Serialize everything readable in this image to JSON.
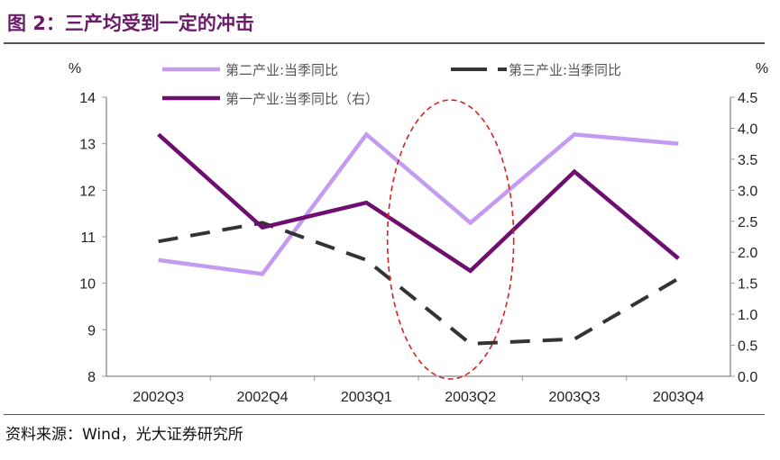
{
  "title": "图 2：三产均受到一定的冲击",
  "source": "资料来源：Wind，光大证券研究所",
  "chart_data": {
    "type": "line",
    "categories": [
      "2002Q3",
      "2002Q4",
      "2003Q1",
      "2003Q2",
      "2003Q3",
      "2003Q4"
    ],
    "left_axis": {
      "unit": "%",
      "ylim": [
        8,
        14
      ],
      "ticks": [
        "8",
        "9",
        "10",
        "11",
        "12",
        "13",
        "14"
      ]
    },
    "right_axis": {
      "unit": "%",
      "ylim": [
        0,
        4.5
      ],
      "ticks": [
        "0.0",
        "0.5",
        "1.0",
        "1.5",
        "2.0",
        "2.5",
        "3.0",
        "3.5",
        "4.0",
        "4.5"
      ]
    },
    "series": [
      {
        "name": "第二产业:当季同比",
        "axis": "left",
        "color": "#c39bf0",
        "style": "solid",
        "values": [
          10.5,
          10.2,
          13.2,
          11.3,
          13.2,
          13.0
        ]
      },
      {
        "name": "第三产业:当季同比",
        "axis": "left",
        "color": "#333333",
        "style": "dashed",
        "values": [
          10.9,
          11.3,
          10.5,
          8.7,
          8.8,
          10.1
        ]
      },
      {
        "name": "第一产业:当季同比（右）",
        "axis": "right",
        "color": "#6e0f70",
        "style": "solid",
        "values": [
          3.9,
          2.4,
          2.8,
          1.7,
          3.3,
          1.9
        ]
      }
    ],
    "annotation": {
      "type": "dashed-ellipse",
      "color": "#d62020",
      "category": "2003Q2"
    },
    "legend": "top",
    "grid": false
  }
}
